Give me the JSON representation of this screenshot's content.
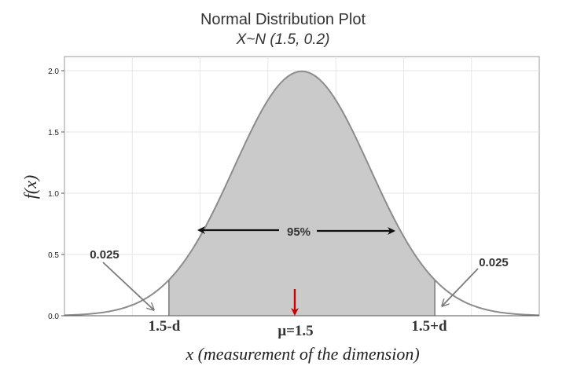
{
  "chart_data": {
    "type": "area",
    "title": "Normal Distribution Plot",
    "subtitle": "X~N (1.5, 0.2)",
    "xlabel": "x (measurement of the dimension)",
    "ylabel": "f(x)",
    "distribution": {
      "mean": 1.5,
      "sd": 0.2
    },
    "xlim": [
      0.8,
      2.2
    ],
    "ylim": [
      0.0,
      2.1
    ],
    "yticks": [
      "0.0",
      "0.5",
      "1.0",
      "1.5",
      "2.0"
    ],
    "shaded_interval": [
      1.108,
      1.892
    ],
    "grid": true,
    "annotations": {
      "center_area": "95%",
      "left_tail": "0.025",
      "right_tail": "0.025",
      "lower_bound": "1.5-d",
      "upper_bound": "1.5+d",
      "mean": "μ=1.5"
    },
    "colors": {
      "curve": "#8c8c8c",
      "fill": "#cacaca",
      "grid": "#e6e6e6",
      "mean_arrow": "#cc0000"
    }
  }
}
